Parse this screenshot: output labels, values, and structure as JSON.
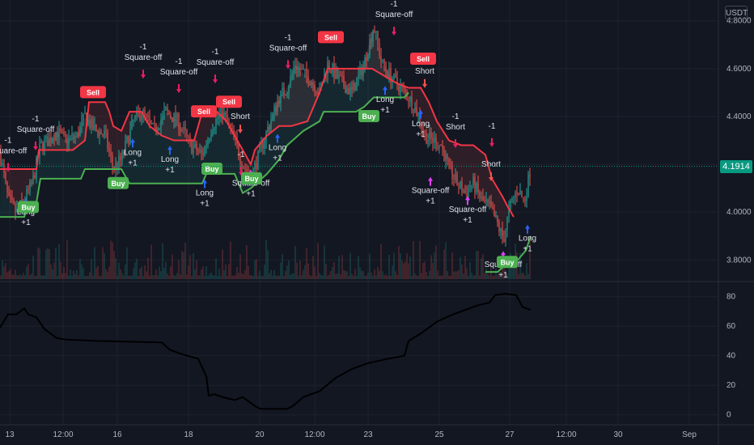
{
  "chart_data": [
    {
      "type": "candlestick",
      "pane": "price",
      "currency": "USDT",
      "last_price": "4.1914",
      "y_ticks": [
        "4.8000",
        "4.6000",
        "4.4000",
        "4.2000",
        "4.0000",
        "3.8000"
      ],
      "ylim": [
        3.72,
        4.86
      ],
      "x_ticks": [
        "13",
        "12:00",
        "16",
        "18",
        "20",
        "12:00",
        "23",
        "25",
        "27",
        "12:00",
        "30",
        "Sep"
      ],
      "close_path": [
        [
          0,
          4.25
        ],
        [
          10,
          4.05
        ],
        [
          20,
          4.0
        ],
        [
          30,
          4.05
        ],
        [
          40,
          4.12
        ],
        [
          50,
          4.28
        ],
        [
          60,
          4.3
        ],
        [
          70,
          4.34
        ],
        [
          80,
          4.3
        ],
        [
          95,
          4.32
        ],
        [
          105,
          4.4
        ],
        [
          115,
          4.35
        ],
        [
          130,
          4.32
        ],
        [
          140,
          4.18
        ],
        [
          150,
          4.22
        ],
        [
          165,
          4.38
        ],
        [
          175,
          4.42
        ],
        [
          190,
          4.34
        ],
        [
          205,
          4.42
        ],
        [
          220,
          4.38
        ],
        [
          235,
          4.28
        ],
        [
          250,
          4.24
        ],
        [
          262,
          4.36
        ],
        [
          275,
          4.42
        ],
        [
          290,
          4.3
        ],
        [
          300,
          4.2
        ],
        [
          310,
          4.14
        ],
        [
          320,
          4.24
        ],
        [
          330,
          4.34
        ],
        [
          345,
          4.48
        ],
        [
          355,
          4.52
        ],
        [
          365,
          4.62
        ],
        [
          375,
          4.58
        ],
        [
          385,
          4.55
        ],
        [
          395,
          4.5
        ],
        [
          405,
          4.62
        ],
        [
          420,
          4.55
        ],
        [
          435,
          4.5
        ],
        [
          450,
          4.62
        ],
        [
          462,
          4.78
        ],
        [
          472,
          4.62
        ],
        [
          485,
          4.56
        ],
        [
          495,
          4.52
        ],
        [
          505,
          4.48
        ],
        [
          515,
          4.42
        ],
        [
          525,
          4.32
        ],
        [
          535,
          4.3
        ],
        [
          545,
          4.28
        ],
        [
          555,
          4.18
        ],
        [
          565,
          4.12
        ],
        [
          575,
          4.08
        ],
        [
          585,
          4.12
        ],
        [
          595,
          4.05
        ],
        [
          605,
          4.02
        ],
        [
          615,
          3.95
        ],
        [
          622,
          3.88
        ],
        [
          630,
          4.02
        ],
        [
          640,
          4.1
        ],
        [
          648,
          4.04
        ],
        [
          656,
          4.19
        ]
      ],
      "upper_trail": [
        [
          0,
          4.18
        ],
        [
          45,
          4.18
        ],
        [
          48,
          4.26
        ],
        [
          90,
          4.26
        ],
        [
          105,
          4.3
        ],
        [
          110,
          4.46
        ],
        [
          130,
          4.46
        ],
        [
          135,
          4.42
        ],
        [
          140,
          4.36
        ],
        [
          150,
          4.34
        ],
        [
          160,
          4.42
        ],
        [
          175,
          4.42
        ],
        [
          185,
          4.36
        ],
        [
          200,
          4.32
        ],
        [
          215,
          4.3
        ],
        [
          240,
          4.3
        ],
        [
          250,
          4.42
        ],
        [
          268,
          4.42
        ],
        [
          280,
          4.38
        ],
        [
          300,
          4.26
        ],
        [
          310,
          4.2
        ],
        [
          315,
          4.26
        ],
        [
          330,
          4.32
        ],
        [
          345,
          4.36
        ],
        [
          360,
          4.36
        ],
        [
          380,
          4.38
        ],
        [
          395,
          4.5
        ],
        [
          405,
          4.6
        ],
        [
          420,
          4.6
        ],
        [
          440,
          4.6
        ],
        [
          460,
          4.6
        ],
        [
          470,
          4.58
        ],
        [
          490,
          4.54
        ],
        [
          505,
          4.52
        ],
        [
          520,
          4.52
        ],
        [
          530,
          4.46
        ],
        [
          540,
          4.38
        ],
        [
          555,
          4.3
        ],
        [
          570,
          4.28
        ],
        [
          585,
          4.28
        ],
        [
          600,
          4.24
        ],
        [
          608,
          4.14
        ],
        [
          615,
          4.1
        ],
        [
          622,
          4.06
        ],
        [
          628,
          4.02
        ],
        [
          635,
          3.98
        ]
      ],
      "lower_trail": [
        [
          0,
          3.98
        ],
        [
          30,
          3.98
        ],
        [
          35,
          4.04
        ],
        [
          45,
          4.04
        ],
        [
          50,
          4.14
        ],
        [
          100,
          4.14
        ],
        [
          105,
          4.18
        ],
        [
          150,
          4.18
        ],
        [
          160,
          4.12
        ],
        [
          250,
          4.12
        ],
        [
          255,
          4.16
        ],
        [
          290,
          4.16
        ],
        [
          300,
          4.08
        ],
        [
          310,
          4.1
        ],
        [
          330,
          4.16
        ],
        [
          345,
          4.22
        ],
        [
          355,
          4.28
        ],
        [
          375,
          4.34
        ],
        [
          395,
          4.38
        ],
        [
          400,
          4.42
        ],
        [
          440,
          4.42
        ],
        [
          450,
          4.44
        ],
        [
          462,
          4.48
        ],
        [
          480,
          4.48
        ],
        [
          500,
          4.48
        ],
        [
          505,
          4.5
        ]
      ],
      "late_lower_trail": [
        [
          600,
          3.75
        ],
        [
          615,
          3.75
        ],
        [
          625,
          3.78
        ],
        [
          640,
          3.8
        ],
        [
          650,
          3.84
        ],
        [
          656,
          3.9
        ]
      ],
      "signals": [
        {
          "kind": "label",
          "lines": [
            "-1",
            "Square-off"
          ],
          "at": [
            44,
            4.38
          ]
        },
        {
          "kind": "label",
          "lines": [
            "-1",
            "Square-off"
          ],
          "at": [
            10,
            4.29
          ]
        },
        {
          "kind": "label",
          "lines": [
            "Long",
            "+1"
          ],
          "at": [
            32,
            3.99
          ]
        },
        {
          "kind": "label",
          "lines": [
            "-1",
            "Square-off"
          ],
          "at": [
            177,
            4.68
          ]
        },
        {
          "kind": "label",
          "lines": [
            "-1",
            "Square-off"
          ],
          "at": [
            221,
            4.62
          ]
        },
        {
          "kind": "label",
          "lines": [
            "-1",
            "Square-off"
          ],
          "at": [
            266,
            4.66
          ]
        },
        {
          "kind": "label",
          "lines": [
            "Long",
            "+1"
          ],
          "at": [
            164,
            4.24
          ]
        },
        {
          "kind": "label",
          "lines": [
            "Long",
            "+1"
          ],
          "at": [
            210,
            4.21
          ]
        },
        {
          "kind": "label",
          "lines": [
            "Long",
            "+1"
          ],
          "at": [
            253,
            4.07
          ]
        },
        {
          "kind": "label",
          "lines": [
            "Short"
          ],
          "at": [
            297,
            4.39
          ]
        },
        {
          "kind": "label",
          "lines": [
            "-1"
          ],
          "at": [
            298,
            4.23
          ]
        },
        {
          "kind": "label",
          "lines": [
            "Square-off",
            "+1"
          ],
          "at": [
            310,
            4.11
          ]
        },
        {
          "kind": "label",
          "lines": [
            "Long",
            "+1"
          ],
          "at": [
            343,
            4.26
          ]
        },
        {
          "kind": "label",
          "lines": [
            "-1",
            "Square-off"
          ],
          "at": [
            356,
            4.72
          ]
        },
        {
          "kind": "label",
          "lines": [
            "-1",
            "Square-off"
          ],
          "at": [
            487,
            4.86
          ]
        },
        {
          "kind": "label",
          "lines": [
            "Short"
          ],
          "at": [
            525,
            4.58
          ]
        },
        {
          "kind": "label",
          "lines": [
            "Long",
            "+1"
          ],
          "at": [
            476,
            4.46
          ]
        },
        {
          "kind": "label",
          "lines": [
            "-1",
            "Short"
          ],
          "at": [
            563,
            4.39
          ]
        },
        {
          "kind": "label",
          "lines": [
            "Long",
            "+1"
          ],
          "at": [
            520,
            4.36
          ]
        },
        {
          "kind": "label",
          "lines": [
            "Square-off",
            "+1"
          ],
          "at": [
            532,
            4.08
          ]
        },
        {
          "kind": "label",
          "lines": [
            "Short"
          ],
          "at": [
            607,
            4.19
          ]
        },
        {
          "kind": "label",
          "lines": [
            "-1"
          ],
          "at": [
            608,
            4.35
          ]
        },
        {
          "kind": "label",
          "lines": [
            "Square-off",
            "+1"
          ],
          "at": [
            578,
            4.0
          ]
        },
        {
          "kind": "label",
          "lines": [
            "Long",
            "+1"
          ],
          "at": [
            652,
            3.88
          ]
        },
        {
          "kind": "label",
          "lines": [
            "Square-off",
            "+1"
          ],
          "at": [
            622,
            3.77
          ]
        }
      ],
      "tags": [
        {
          "text": "Sell",
          "color": "#f23645",
          "at": [
            115,
            4.5
          ]
        },
        {
          "text": "Sell",
          "color": "#f23645",
          "at": [
            252,
            4.42
          ]
        },
        {
          "text": "Sell",
          "color": "#f23645",
          "at": [
            283,
            4.46
          ]
        },
        {
          "text": "Sell",
          "color": "#f23645",
          "at": [
            409,
            4.73
          ]
        },
        {
          "text": "Sell",
          "color": "#f23645",
          "at": [
            523,
            4.64
          ]
        },
        {
          "text": "Buy",
          "color": "#4caf50",
          "at": [
            146,
            4.12
          ]
        },
        {
          "text": "Buy",
          "color": "#4caf50",
          "at": [
            262,
            4.18
          ]
        },
        {
          "text": "Buy",
          "color": "#4caf50",
          "at": [
            311,
            4.14
          ]
        },
        {
          "text": "Buy",
          "color": "#4caf50",
          "at": [
            456,
            4.4
          ]
        },
        {
          "text": "Buy",
          "color": "#4caf50",
          "at": [
            35,
            4.02
          ]
        },
        {
          "text": "Buy",
          "color": "#4caf50",
          "at": [
            627,
            3.79
          ]
        }
      ],
      "colors": {
        "bull": "#26a69a",
        "bear": "#ef5350",
        "upper": "#f23645",
        "lower": "#4caf50",
        "up_arrow": "#2962ff",
        "down_arrow": "#e91e63",
        "pink_marker": "#e040fb"
      }
    },
    {
      "type": "line",
      "pane": "oscillator",
      "y_ticks": [
        "80",
        "60",
        "40",
        "20",
        "0"
      ],
      "ylim": [
        -4,
        88
      ],
      "series": [
        {
          "values": [
            [
              0,
              59
            ],
            [
              10,
              68
            ],
            [
              20,
              68
            ],
            [
              30,
              72
            ],
            [
              35,
              68
            ],
            [
              45,
              66
            ],
            [
              55,
              58
            ],
            [
              70,
              52
            ],
            [
              80,
              51
            ],
            [
              120,
              50
            ],
            [
              200,
              49
            ],
            [
              210,
              44
            ],
            [
              225,
              41
            ],
            [
              245,
              38
            ],
            [
              255,
              26
            ],
            [
              258,
              13
            ],
            [
              265,
              14
            ],
            [
              275,
              12
            ],
            [
              290,
              10
            ],
            [
              300,
              12
            ],
            [
              315,
              6
            ],
            [
              322,
              4
            ],
            [
              340,
              4
            ],
            [
              355,
              4
            ],
            [
              362,
              6
            ],
            [
              375,
              12
            ],
            [
              395,
              16
            ],
            [
              415,
              25
            ],
            [
              435,
              31
            ],
            [
              455,
              35
            ],
            [
              480,
              38
            ],
            [
              500,
              40
            ],
            [
              505,
              50
            ],
            [
              520,
              55
            ],
            [
              540,
              63
            ],
            [
              560,
              68
            ],
            [
              575,
              71
            ],
            [
              590,
              74
            ],
            [
              605,
              76
            ],
            [
              612,
              81
            ],
            [
              625,
              82
            ],
            [
              638,
              81
            ],
            [
              646,
              73
            ],
            [
              656,
              71
            ]
          ]
        }
      ]
    }
  ],
  "ui": {
    "currency_label": "USDT",
    "last_price_label": "4.1914"
  }
}
